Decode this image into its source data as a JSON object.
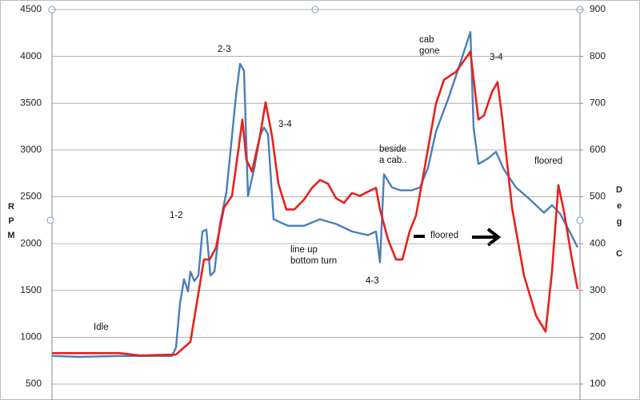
{
  "chart_data": {
    "type": "line",
    "y_label": "RPM",
    "y2_label": "Deg C",
    "xlim": [
      0,
      660
    ],
    "ylim": [
      500,
      4500
    ],
    "yticks": [
      500,
      1000,
      1500,
      2000,
      2500,
      3000,
      3500,
      4000,
      4500
    ],
    "y2lim": [
      100,
      900
    ],
    "y2ticks": [
      100,
      200,
      300,
      400,
      500,
      600,
      700,
      800,
      900
    ],
    "grid": true,
    "series": [
      {
        "name": "RPM",
        "color": "#4a7ebb",
        "axis": "y",
        "x": [
          0,
          35,
          85,
          135,
          150,
          155,
          160,
          165,
          170,
          173,
          178,
          183,
          188,
          193,
          198,
          203,
          210,
          218,
          225,
          230,
          235,
          240,
          245,
          253,
          260,
          265,
          270,
          277,
          295,
          315,
          335,
          355,
          375,
          395,
          405,
          410,
          415,
          425,
          435,
          450,
          460,
          470,
          480,
          495,
          510,
          523,
          527,
          533,
          545,
          555,
          565,
          580,
          595,
          610,
          615,
          625,
          635,
          647,
          657
        ],
        "values": [
          800,
          790,
          800,
          800,
          800,
          890,
          1360,
          1620,
          1490,
          1700,
          1600,
          1660,
          2130,
          2150,
          1660,
          1700,
          2210,
          2550,
          3150,
          3580,
          3920,
          3850,
          2510,
          2810,
          3150,
          3240,
          3170,
          2260,
          2190,
          2190,
          2260,
          2210,
          2130,
          2090,
          2130,
          1800,
          2740,
          2600,
          2570,
          2570,
          2600,
          2810,
          3200,
          3540,
          3920,
          4260,
          3240,
          2850,
          2910,
          2980,
          2790,
          2600,
          2490,
          2370,
          2330,
          2410,
          2320,
          2130,
          1960
        ]
      },
      {
        "name": "Deg C",
        "color": "#e8201c",
        "axis": "y2",
        "x": [
          0,
          85,
          110,
          155,
          173,
          190,
          197,
          205,
          215,
          225,
          232,
          238,
          243,
          250,
          260,
          267,
          275,
          283,
          293,
          303,
          315,
          325,
          335,
          345,
          355,
          365,
          375,
          385,
          395,
          405,
          410,
          420,
          430,
          438,
          447,
          455,
          465,
          480,
          490,
          505,
          523,
          533,
          540,
          550,
          557,
          563,
          575,
          590,
          605,
          617,
          625,
          633,
          640,
          650,
          657
        ],
        "values": [
          166,
          166,
          161,
          163,
          190,
          366,
          366,
          391,
          477,
          502,
          588,
          665,
          579,
          554,
          630,
          702,
          630,
          528,
          473,
          473,
          494,
          519,
          536,
          528,
          497,
          487,
          508,
          502,
          511,
          519,
          473,
          409,
          366,
          366,
          426,
          460,
          554,
          699,
          750,
          767,
          810,
          665,
          674,
          724,
          745,
          665,
          477,
          332,
          246,
          212,
          340,
          525,
          468,
          366,
          303
        ]
      }
    ],
    "annotations": [
      {
        "lines": [
          "Idle"
        ]
      },
      {
        "lines": [
          "1-2"
        ]
      },
      {
        "lines": [
          "2-3"
        ]
      },
      {
        "lines": [
          "3-4"
        ]
      },
      {
        "lines": [
          "line up",
          "bottom  turn"
        ]
      },
      {
        "lines": [
          "4-3"
        ]
      },
      {
        "lines": [
          "beside",
          "a cab.."
        ]
      },
      {
        "lines": [
          "cab",
          "gone"
        ]
      },
      {
        "lines": [
          "3-4"
        ]
      },
      {
        "lines": [
          "floored"
        ]
      },
      {
        "lines": [
          "floored"
        ]
      }
    ]
  }
}
